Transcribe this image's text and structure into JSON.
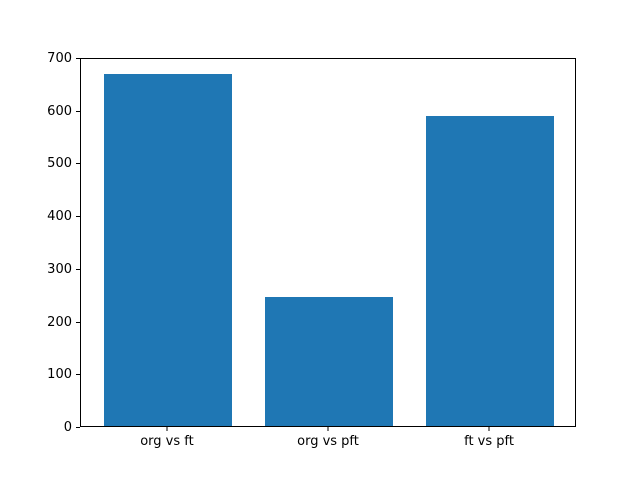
{
  "chart_data": {
    "type": "bar",
    "categories": [
      "org vs ft",
      "org vs pft",
      "ft vs pft"
    ],
    "values": [
      670,
      245,
      590
    ],
    "title": "",
    "xlabel": "",
    "ylabel": "",
    "ylim": [
      0,
      700
    ],
    "yticks": [
      0,
      100,
      200,
      300,
      400,
      500,
      600,
      700
    ],
    "bar_color": "#1f77b4",
    "bar_width_fraction": 0.8,
    "grid": false,
    "legend": false
  }
}
